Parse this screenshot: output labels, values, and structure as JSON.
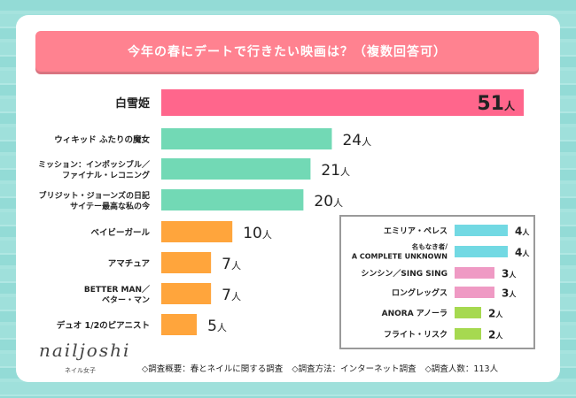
{
  "title": "今年の春にデートで行きたい映画は？（複数回答可）",
  "chart_data": {
    "type": "bar",
    "orientation": "horizontal",
    "title": "今年の春にデートで行きたい映画は？（複数回答可）",
    "unit": "人",
    "main": {
      "categories": [
        [
          "白雪姫"
        ],
        [
          "ウィキッド ふたりの魔女"
        ],
        [
          "ミッション：インポッシブル／",
          "ファイナル・レコニング"
        ],
        [
          "ブリジット・ジョーンズの日記",
          "サイテー最高な私の今"
        ],
        [
          "ベイビーガール"
        ],
        [
          "アマチュア"
        ],
        [
          "BETTER MAN／",
          "ベター・マン"
        ],
        [
          "デュオ 1/2のピアニスト"
        ]
      ],
      "values": [
        51,
        24,
        21,
        20,
        10,
        7,
        7,
        5
      ],
      "colors": [
        "#ff668c",
        "#72d9b5",
        "#72d9b5",
        "#72d9b5",
        "#ffa53c",
        "#ffa53c",
        "#ffa53c",
        "#ffa53c"
      ],
      "label_colors": [
        "#ff668c",
        "#222222",
        "#222222",
        "#222222",
        "#222222",
        "#222222",
        "#222222",
        "#222222"
      ],
      "xlim": [
        0,
        51
      ]
    },
    "inset": {
      "categories": [
        [
          "エミリア・ペレス"
        ],
        [
          "名もなき者/",
          "A COMPLETE UNKNOWN"
        ],
        [
          "シンシン／SING SING"
        ],
        [
          "ロングレッグス"
        ],
        [
          "ANORA アノーラ"
        ],
        [
          "フライト・リスク"
        ]
      ],
      "values": [
        4,
        4,
        3,
        3,
        2,
        2
      ],
      "colors": [
        "#72d9e3",
        "#72d9e3",
        "#ef9ac4",
        "#ef9ac4",
        "#a6d950",
        "#a6d950"
      ]
    }
  },
  "brand": {
    "name": "nailjoshi",
    "sub": "ネイル女子"
  },
  "footer": {
    "items": [
      "◇調査概要：春とネイルに関する調査",
      "◇調査方法：インターネット調査",
      "◇調査人数：113人"
    ]
  }
}
